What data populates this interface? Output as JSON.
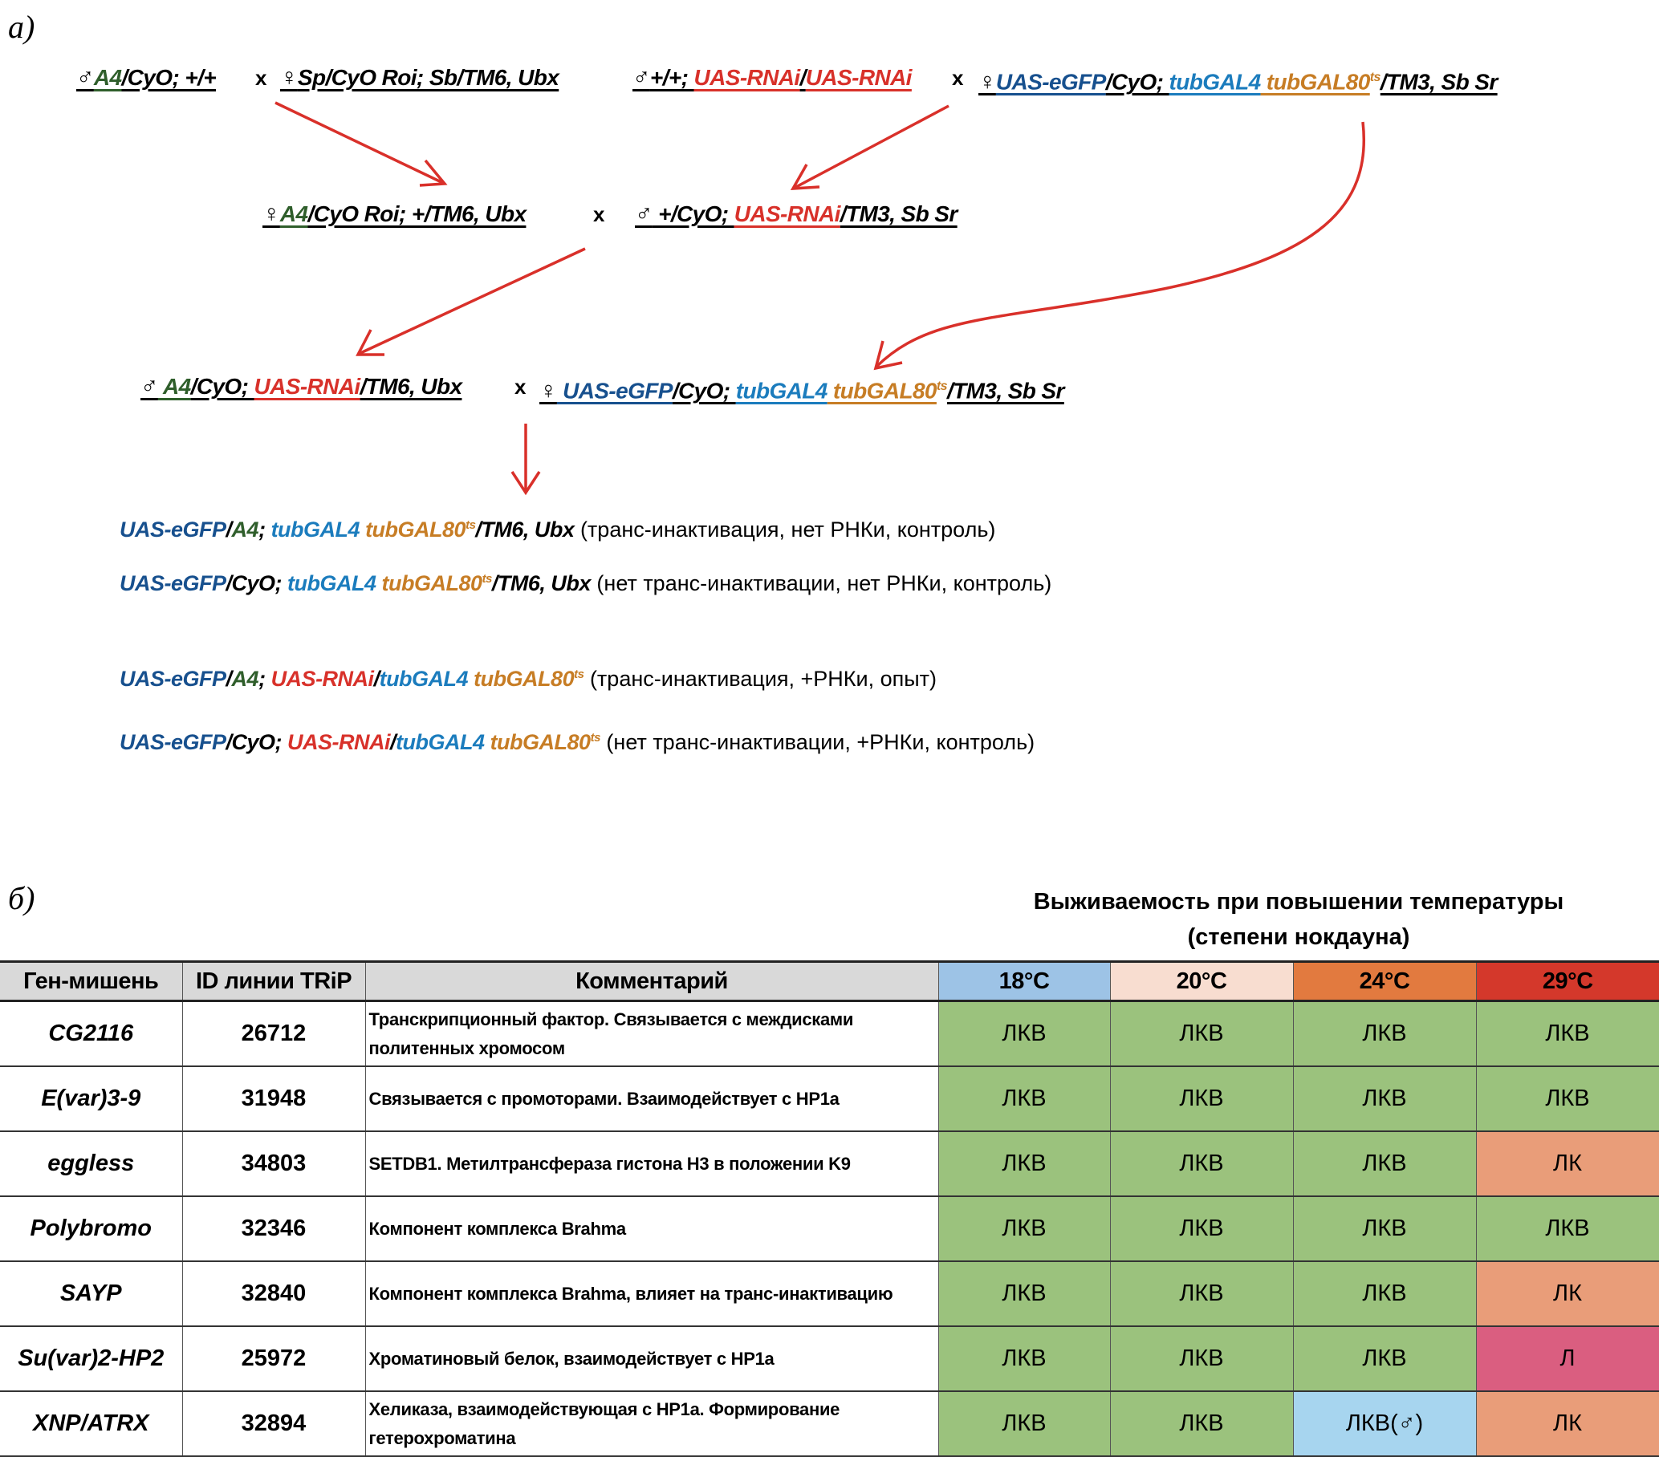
{
  "panel_a_label": "а)",
  "panel_b_label": "б)",
  "colors": {
    "green": "#2f5e2b",
    "red": "#d8312a",
    "darkblue": "#17508e",
    "blue": "#1b7cbd",
    "orange": "#c77d25",
    "black": "#000000",
    "arrow": "#d9302a"
  },
  "crosses": {
    "cross_symbol": "x",
    "g1m": {
      "sym": "♂",
      "parts": [
        [
          "A4",
          "green"
        ],
        [
          "/CyO; +/+",
          "black"
        ]
      ]
    },
    "g1f": {
      "sym": "♀",
      "parts": [
        [
          "Sp/CyO Roi; Sb/TM6, Ubx",
          "black"
        ]
      ]
    },
    "g2m": {
      "sym": "♂",
      "parts": [
        [
          "+/+; ",
          "black"
        ],
        [
          "UAS-RNAi",
          "red"
        ],
        [
          "/",
          "black"
        ],
        [
          "UAS-RNAi",
          "red"
        ]
      ]
    },
    "g2f": {
      "sym": "♀",
      "parts": [
        [
          "UAS-eGFP",
          "darkblue"
        ],
        [
          "/CyO; ",
          "black"
        ],
        [
          "tubGAL4",
          "blue"
        ],
        [
          " tubGAL80",
          "orange"
        ],
        [
          "ts",
          "orange",
          "sup"
        ],
        [
          "/TM3, Sb Sr",
          "black"
        ]
      ]
    },
    "g3f": {
      "sym": "♀",
      "parts": [
        [
          "A4",
          "green"
        ],
        [
          "/CyO Roi; +/TM6, Ubx",
          "black"
        ]
      ]
    },
    "g3m": {
      "sym": "♂",
      "parts": [
        [
          " +/CyO; ",
          "black"
        ],
        [
          "UAS-RNAi",
          "red"
        ],
        [
          "/TM3, Sb Sr",
          "black"
        ]
      ]
    },
    "g4m": {
      "sym": "♂",
      "parts": [
        [
          " A4",
          "green"
        ],
        [
          "/CyO; ",
          "black"
        ],
        [
          "UAS-RNAi",
          "red"
        ],
        [
          "/TM6, Ubx",
          "black"
        ]
      ]
    },
    "g4f": {
      "sym": "♀",
      "parts": [
        [
          " UAS-eGFP",
          "darkblue"
        ],
        [
          "/CyO; ",
          "black"
        ],
        [
          "tubGAL4",
          "blue"
        ],
        [
          " tubGAL80",
          "orange"
        ],
        [
          "ts",
          "orange",
          "sup"
        ],
        [
          "/TM3, Sb Sr",
          "black"
        ]
      ]
    }
  },
  "offspring": [
    {
      "parts": [
        [
          "UAS-eGFP",
          "darkblue"
        ],
        [
          "/",
          "black"
        ],
        [
          "A4",
          "green"
        ],
        [
          "; ",
          "black"
        ],
        [
          "tubGAL4",
          "blue"
        ],
        [
          " tubGAL80",
          "orange"
        ],
        [
          "ts",
          "orange",
          "sup"
        ],
        [
          "/TM6, Ubx",
          "black"
        ]
      ],
      "note": " (транс-инактивация, нет РНКи, контроль)"
    },
    {
      "parts": [
        [
          "UAS-eGFP",
          "darkblue"
        ],
        [
          "/CyO; ",
          "black"
        ],
        [
          "tubGAL4",
          "blue"
        ],
        [
          " tubGAL80",
          "orange"
        ],
        [
          "ts",
          "orange",
          "sup"
        ],
        [
          "/TM6, Ubx",
          "black"
        ]
      ],
      "note": " (нет транс-инактивации, нет РНКи, контроль)"
    },
    {
      "parts": [
        [
          "UAS-eGFP",
          "darkblue"
        ],
        [
          "/",
          "black"
        ],
        [
          "A4",
          "green"
        ],
        [
          "; ",
          "black"
        ],
        [
          "UAS-RNAi",
          "red"
        ],
        [
          "/",
          "black"
        ],
        [
          "tubGAL4",
          "blue"
        ],
        [
          " tubGAL80",
          "orange"
        ],
        [
          "ts",
          "orange",
          "sup"
        ]
      ],
      "note": "  (транс-инактивация, +РНКи, опыт)"
    },
    {
      "parts": [
        [
          "UAS-eGFP",
          "darkblue"
        ],
        [
          "/CyO; ",
          "black"
        ],
        [
          "UAS-RNAi",
          "red"
        ],
        [
          "/",
          "black"
        ],
        [
          "tubGAL4",
          "blue"
        ],
        [
          " tubGAL80",
          "orange"
        ],
        [
          "ts",
          "orange",
          "sup"
        ]
      ],
      "note": "  (нет транс-инактивации, +РНКи, контроль)"
    }
  ],
  "table": {
    "title_line1": "Выживаемость при повышении температуры",
    "title_line2": "(степени нокдауна)",
    "headers": [
      "Ген-мишень",
      "ID линии TRiP",
      "Комментарий"
    ],
    "temps": [
      {
        "label": "18°C",
        "color": "#9dc3e6"
      },
      {
        "label": "20°C",
        "color": "#f8ddd0"
      },
      {
        "label": "24°C",
        "color": "#e27a3f"
      },
      {
        "label": "29°C",
        "color": "#d4382b"
      }
    ],
    "value_colors": {
      "ЛКВ": "#9bc27d",
      "ЛК": "#e99d79",
      "Л": "#da5e80",
      "ЛКВ(♂)": "#a7d5ef"
    },
    "rows": [
      {
        "gene": "CG2116",
        "id": "26712",
        "comment": "Транскрипционный фактор. Связывается с междисками политенных хромосом",
        "values": [
          "ЛКВ",
          "ЛКВ",
          "ЛКВ",
          "ЛКВ"
        ]
      },
      {
        "gene": "E(var)3-9",
        "id": "31948",
        "comment": "Связывается с промоторами. Взаимодействует с HP1a",
        "values": [
          "ЛКВ",
          "ЛКВ",
          "ЛКВ",
          "ЛКВ"
        ]
      },
      {
        "gene": "eggless",
        "id": "34803",
        "comment": "SETDB1. Метилтрансфераза гистона H3 в положении K9",
        "values": [
          "ЛКВ",
          "ЛКВ",
          "ЛКВ",
          "ЛК"
        ]
      },
      {
        "gene": "Polybromo",
        "id": "32346",
        "comment": "Компонент комплекса Brahma",
        "values": [
          "ЛКВ",
          "ЛКВ",
          "ЛКВ",
          "ЛКВ"
        ]
      },
      {
        "gene": "SAYP",
        "id": "32840",
        "comment": "Компонент комплекса Brahma, влияет на транс-инактивацию",
        "values": [
          "ЛКВ",
          "ЛКВ",
          "ЛКВ",
          "ЛК"
        ]
      },
      {
        "gene": "Su(var)2-HP2",
        "id": "25972",
        "comment": "Хроматиновый белок, взаимодействует с HP1a",
        "values": [
          "ЛКВ",
          "ЛКВ",
          "ЛКВ",
          "Л"
        ]
      },
      {
        "gene": "XNP/ATRX",
        "id": "32894",
        "comment": "Хеликаза, взаимодействующая с HP1a. Формирование гетерохроматина",
        "values": [
          "ЛКВ",
          "ЛКВ",
          "ЛКВ(♂)",
          "ЛК"
        ]
      }
    ]
  }
}
